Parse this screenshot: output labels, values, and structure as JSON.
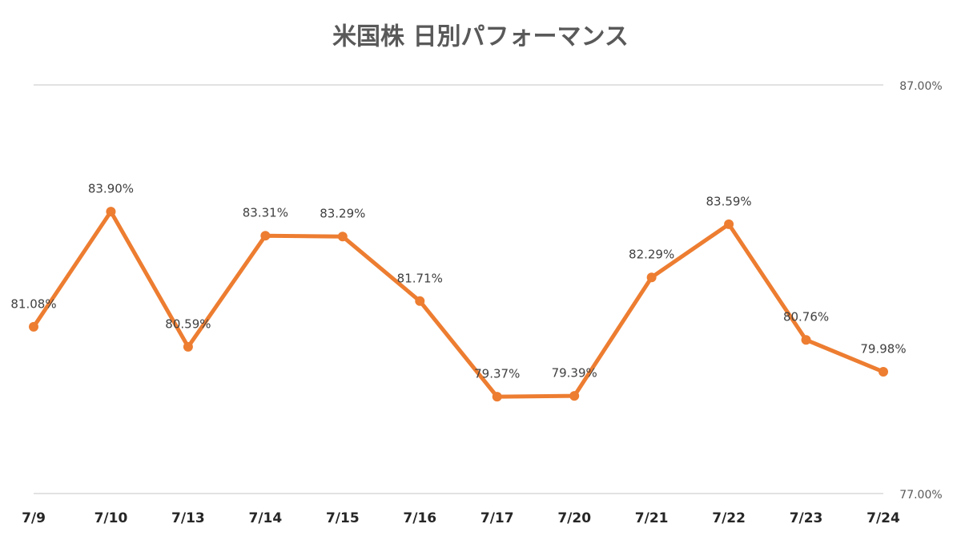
{
  "chart_data": {
    "type": "line",
    "title": "米国株 日別パフォーマンス",
    "categories": [
      "7/9",
      "7/10",
      "7/13",
      "7/14",
      "7/15",
      "7/16",
      "7/17",
      "7/20",
      "7/21",
      "7/22",
      "7/23",
      "7/24"
    ],
    "values": [
      81.08,
      83.9,
      80.59,
      83.31,
      83.29,
      81.71,
      79.37,
      79.39,
      82.29,
      83.59,
      80.76,
      79.98
    ],
    "value_labels": [
      "81.08%",
      "83.90%",
      "80.59%",
      "83.31%",
      "83.29%",
      "81.71%",
      "79.37%",
      "79.39%",
      "82.29%",
      "83.59%",
      "80.76%",
      "79.98%"
    ],
    "color": "#ed7d31",
    "ylim": [
      77,
      87
    ],
    "yticks": [
      {
        "value": 77,
        "label": "77.00%"
      },
      {
        "value": 87,
        "label": "87.00%"
      }
    ],
    "grid": true
  }
}
